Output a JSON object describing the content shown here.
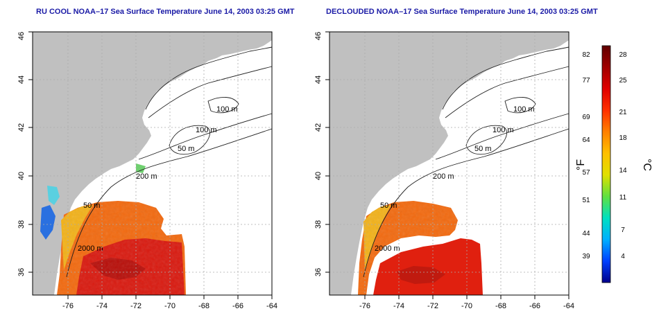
{
  "panels": [
    {
      "title": "RU COOL NOAA–17 Sea Surface Temperature June 14, 2003 03:25 GMT",
      "x_ticks": [
        "-76",
        "-74",
        "-72",
        "-70",
        "-68",
        "-66",
        "-64"
      ],
      "y_ticks": [
        "36",
        "38",
        "40",
        "42",
        "44",
        "46"
      ],
      "contour_labels": [
        "100 m",
        "100 m",
        "50 m",
        "200 m",
        "50 m",
        "2000 m"
      ],
      "clouded": true
    },
    {
      "title": "DECLOUDED NOAA–17 Sea Surface Temperature June 14, 2003 03:25 GMT",
      "x_ticks": [
        "-76",
        "-74",
        "-72",
        "-70",
        "-68",
        "-66",
        "-64"
      ],
      "y_ticks": [
        "36",
        "38",
        "40",
        "42",
        "44",
        "46"
      ],
      "contour_labels": [
        "100 m",
        "100 m",
        "50 m",
        "200 m",
        "50 m",
        "2000 m"
      ],
      "clouded": false
    }
  ],
  "colorbar": {
    "fahrenheit_ticks": [
      "82",
      "77",
      "69",
      "64",
      "57",
      "51",
      "44",
      "39"
    ],
    "celsius_ticks": [
      "28",
      "25",
      "21",
      "18",
      "14",
      "11",
      "7",
      "4"
    ],
    "fahrenheit_unit": "°F",
    "celsius_unit": "°C",
    "colors": [
      "#00008b",
      "#0040ff",
      "#00b0ff",
      "#00e0c0",
      "#60e040",
      "#e0e000",
      "#ffc000",
      "#ff8000",
      "#ff3000",
      "#e00000",
      "#a00000",
      "#600000"
    ]
  },
  "colors": {
    "land": "#c0c0c0",
    "ocean": "#ffffff",
    "contour": "#202020",
    "grid": "#aaaaaa",
    "title": "#1a1aa6"
  }
}
